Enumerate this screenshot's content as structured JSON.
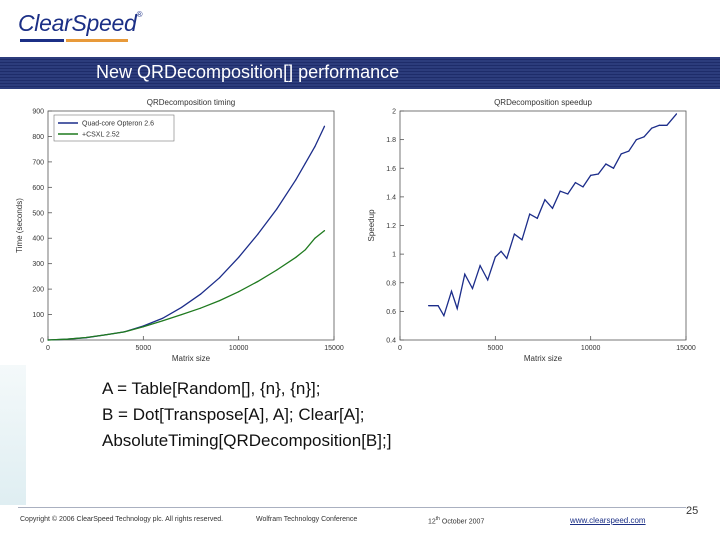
{
  "header": {
    "logo_text": "ClearSpeed",
    "logo_mark": "®"
  },
  "slide": {
    "title": "New QRDecomposition[] performance",
    "code_lines": [
      "A = Table[Random[], {n}, {n}];",
      "B = Dot[Transpose[A], A]; Clear[A];",
      "AbsoluteTiming[QRDecomposition[B];]"
    ]
  },
  "footer": {
    "copyright": "Copyright © 2006 ClearSpeed Technology plc. All rights reserved.",
    "conference": "Wolfram Technology Conference",
    "date_day": "12",
    "date_sup": "th",
    "date_rest": " October 2007",
    "url": "www.clearspeed.com",
    "page_number": "25"
  },
  "colors": {
    "brand_blue": "#1b2f86",
    "brand_orange": "#e89a3a",
    "title_bar": "#1e2c6a",
    "series_blue": "#1c2d8a",
    "series_green": "#1f7a1f"
  },
  "chart_data": [
    {
      "type": "line",
      "title": "QRDecomposition timing",
      "xlabel": "Matrix size",
      "ylabel": "Time (seconds)",
      "xlim": [
        0,
        15000
      ],
      "ylim": [
        0,
        900
      ],
      "xticks": [
        0,
        5000,
        10000,
        15000
      ],
      "xtick_labels": [
        "0",
        "5000",
        "10000",
        "15000"
      ],
      "yticks": [
        0,
        100,
        200,
        300,
        400,
        500,
        600,
        700,
        800,
        900
      ],
      "ytick_labels": [
        "0",
        "100",
        "200",
        "300",
        "400",
        "500",
        "600",
        "700",
        "800",
        "900"
      ],
      "legend": "top-left",
      "series": [
        {
          "name": "Quad-core Opteron 2.6",
          "color": "#1c2d8a",
          "x": [
            0,
            1000,
            2000,
            3000,
            4000,
            5000,
            6000,
            7000,
            8000,
            9000,
            10000,
            11000,
            12000,
            13000,
            13500,
            14000,
            14500
          ],
          "values": [
            0,
            3,
            9,
            20,
            32,
            55,
            85,
            128,
            180,
            245,
            325,
            415,
            515,
            630,
            695,
            760,
            840
          ]
        },
        {
          "name": "+CSXL 2.52",
          "color": "#1f7a1f",
          "x": [
            0,
            1000,
            2000,
            3000,
            4000,
            5000,
            6000,
            7000,
            8000,
            9000,
            10000,
            11000,
            12000,
            13000,
            13500,
            14000,
            14500
          ],
          "values": [
            0,
            3,
            10,
            20,
            32,
            52,
            75,
            100,
            125,
            155,
            190,
            230,
            275,
            325,
            355,
            400,
            430
          ]
        }
      ]
    },
    {
      "type": "line",
      "title": "QRDecomposition speedup",
      "xlabel": "Matrix size",
      "ylabel": "Speedup",
      "xlim": [
        0,
        15000
      ],
      "ylim": [
        0.4,
        2
      ],
      "xticks": [
        0,
        5000,
        10000,
        15000
      ],
      "xtick_labels": [
        "0",
        "5000",
        "10000",
        "15000"
      ],
      "yticks": [
        0.4,
        0.6,
        0.8,
        1,
        1.2,
        1.4,
        1.6,
        1.8,
        2
      ],
      "ytick_labels": [
        "0.4",
        "0.6",
        "0.8",
        "1",
        "1.2",
        "1.4",
        "1.6",
        "1.8",
        "2"
      ],
      "series": [
        {
          "name": "",
          "color": "#1c2d8a",
          "x": [
            1500,
            2000,
            2300,
            2700,
            3000,
            3400,
            3800,
            4200,
            4600,
            5000,
            5300,
            5600,
            6000,
            6400,
            6800,
            7200,
            7600,
            8000,
            8400,
            8800,
            9200,
            9600,
            10000,
            10400,
            10800,
            11200,
            11600,
            12000,
            12400,
            12800,
            13200,
            13600,
            14000,
            14500
          ],
          "values": [
            0.64,
            0.64,
            0.57,
            0.74,
            0.62,
            0.86,
            0.76,
            0.92,
            0.82,
            0.98,
            1.02,
            0.97,
            1.14,
            1.1,
            1.28,
            1.25,
            1.38,
            1.32,
            1.44,
            1.42,
            1.5,
            1.47,
            1.55,
            1.56,
            1.63,
            1.6,
            1.7,
            1.72,
            1.8,
            1.82,
            1.88,
            1.9,
            1.9,
            1.98
          ]
        }
      ]
    }
  ]
}
